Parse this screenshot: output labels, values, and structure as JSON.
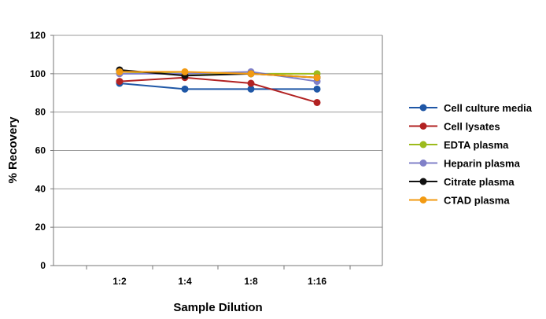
{
  "chart_data": {
    "type": "line",
    "title": "",
    "xlabel": "Sample Dilution",
    "ylabel": "% Recovery",
    "categories": [
      "1:2",
      "1:4",
      "1:8",
      "1:16"
    ],
    "ylim": [
      0,
      120
    ],
    "yticks": [
      0,
      20,
      40,
      60,
      80,
      100,
      120
    ],
    "grid": "horizontal",
    "legend_position": "right",
    "series": [
      {
        "name": "Cell culture media",
        "color": "#1f57a6",
        "values": [
          95,
          92,
          92,
          92
        ]
      },
      {
        "name": "Cell lysates",
        "color": "#b22222",
        "values": [
          96,
          98,
          95,
          85
        ]
      },
      {
        "name": "EDTA plasma",
        "color": "#9cbb1c",
        "values": [
          101,
          100,
          100,
          100
        ]
      },
      {
        "name": "Heparin plasma",
        "color": "#8080c8",
        "values": [
          100,
          100,
          101,
          96
        ]
      },
      {
        "name": "Citrate plasma",
        "color": "#111111",
        "values": [
          102,
          99,
          100,
          98
        ]
      },
      {
        "name": "CTAD plasma",
        "color": "#f29a12",
        "values": [
          101,
          101,
          100,
          98
        ]
      }
    ]
  }
}
